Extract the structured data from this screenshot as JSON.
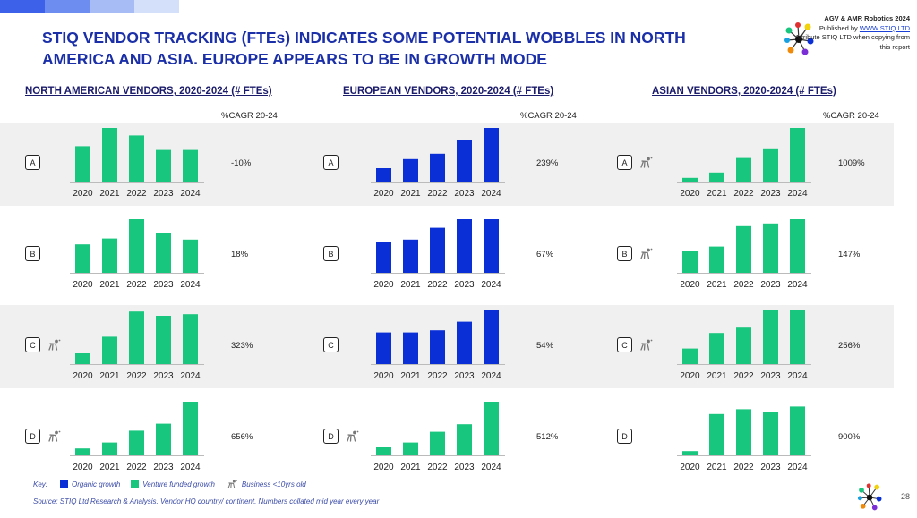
{
  "header": {
    "title": "STIQ VENDOR TRACKING (FTEs) INDICATES SOME POTENTIAL WOBBLES IN NORTH AMERICA AND ASIA. EUROPE APPEARS TO BE IN GROWTH MODE",
    "publisher_title": "AGV & AMR Robotics 2024",
    "published_by": "Published by",
    "publisher_link": "WWW.STIQ.LTD",
    "attribution": "Attribute STIQ LTD when copying from this report"
  },
  "colors": {
    "organic": "#0a2fd6",
    "venture": "#19c67e",
    "title": "#1a2fa8",
    "band": "#f0f0f0"
  },
  "cagr_label": "%CAGR 20-24",
  "chart_data": [
    {
      "type": "bar",
      "title": "NORTH AMERICAN VENDORS, 2020-2024 (# FTEs)",
      "categories": [
        "2020",
        "2021",
        "2022",
        "2023",
        "2024"
      ],
      "vendors": [
        {
          "label": "A",
          "growth": "venture",
          "young": false,
          "cagr": "-10%",
          "values": [
            66,
            100,
            86,
            59,
            59
          ]
        },
        {
          "label": "B",
          "growth": "venture",
          "young": false,
          "cagr": "18%",
          "values": [
            53,
            64,
            100,
            75,
            62
          ]
        },
        {
          "label": "C",
          "growth": "venture",
          "young": true,
          "cagr": "323%",
          "values": [
            20,
            51,
            98,
            90,
            93
          ]
        },
        {
          "label": "D",
          "growth": "venture",
          "young": true,
          "cagr": "656%",
          "values": [
            13,
            24,
            46,
            59,
            100
          ]
        }
      ]
    },
    {
      "type": "bar",
      "title": "EUROPEAN VENDORS, 2020-2024 (# FTEs)",
      "categories": [
        "2020",
        "2021",
        "2022",
        "2023",
        "2024"
      ],
      "vendors": [
        {
          "label": "A",
          "growth": "organic",
          "young": false,
          "cagr": "239%",
          "values": [
            25,
            42,
            52,
            78,
            100
          ]
        },
        {
          "label": "B",
          "growth": "organic",
          "young": false,
          "cagr": "67%",
          "values": [
            57,
            62,
            84,
            100,
            100
          ]
        },
        {
          "label": "C",
          "growth": "organic",
          "young": false,
          "cagr": "54%",
          "values": [
            59,
            59,
            63,
            79,
            100
          ]
        },
        {
          "label": "D",
          "growth": "venture",
          "young": true,
          "cagr": "512%",
          "values": [
            15,
            24,
            44,
            58,
            100
          ]
        }
      ]
    },
    {
      "type": "bar",
      "title": "ASIAN VENDORS, 2020-2024 (# FTEs)",
      "categories": [
        "2020",
        "2021",
        "2022",
        "2023",
        "2024"
      ],
      "vendors": [
        {
          "label": "A",
          "growth": "venture",
          "young": true,
          "cagr": "1009%",
          "values": [
            7,
            17,
            44,
            62,
            100
          ]
        },
        {
          "label": "B",
          "growth": "venture",
          "young": true,
          "cagr": "147%",
          "values": [
            40,
            49,
            87,
            92,
            100
          ]
        },
        {
          "label": "C",
          "growth": "venture",
          "young": true,
          "cagr": "256%",
          "values": [
            29,
            58,
            68,
            100,
            100
          ]
        },
        {
          "label": "D",
          "growth": "venture",
          "young": false,
          "cagr": "900%",
          "values": [
            8,
            77,
            86,
            81,
            91
          ]
        }
      ]
    }
  ],
  "key": {
    "label": "Key:",
    "organic": "Organic growth",
    "venture": "Venture funded growth",
    "young": "Business <10yrs old"
  },
  "source": "Source: STIQ Ltd Research & Analysis. Vendor HQ country/ continent. Numbers collated mid year every year",
  "page_number": "28"
}
